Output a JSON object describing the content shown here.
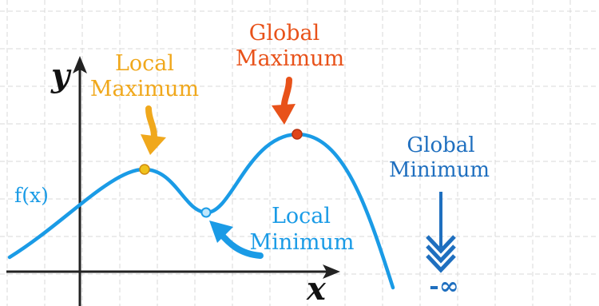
{
  "axes": {
    "x_label": "x",
    "y_label": "y"
  },
  "function_label": "f(x)",
  "annotations": {
    "local_maximum": {
      "line1": "Local",
      "line2": "Maximum"
    },
    "global_maximum": {
      "line1": "Global",
      "line2": "Maximum"
    },
    "local_minimum": {
      "line1": "Local",
      "line2": "Minimum"
    },
    "global_minimum": {
      "line1": "Global",
      "line2": "Minimum",
      "symbol": "-∞"
    }
  },
  "colors": {
    "curve": "#1a9be6",
    "local_maximum": "#f0a81c",
    "global_maximum": "#e8521a",
    "local_minimum": "#1a9be6",
    "global_minimum": "#1f6fbf",
    "axes": "#222222",
    "grid": "#d9d9d9"
  }
}
